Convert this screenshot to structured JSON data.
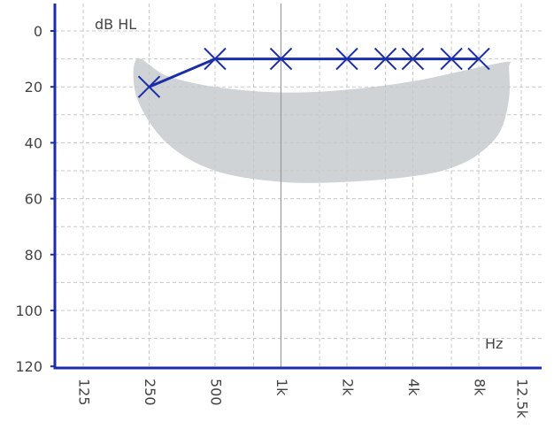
{
  "chart_data": {
    "type": "line",
    "ylabel": "dB HL",
    "xlabel": "Hz",
    "y_axis": {
      "ticks": [
        0,
        20,
        40,
        60,
        80,
        100,
        120
      ],
      "range": [
        -10,
        120
      ],
      "inverted": true,
      "minor_gridlines_every": 10
    },
    "x_axis": {
      "scale": "log2",
      "tick_labels": [
        "125",
        "250",
        "500",
        "1k",
        "2k",
        "4k",
        "8k",
        "12.5k"
      ],
      "tick_freqs_hz": [
        125,
        250,
        500,
        1000,
        2000,
        4000,
        8000,
        12500
      ],
      "label_rotation": "vertical",
      "intermediate_gridlines_hz": [
        750,
        1500,
        3000,
        6000
      ],
      "center_reference_line_hz": 1000
    },
    "grid": true,
    "series": [
      {
        "marker": "x",
        "color": "#1a2ea8",
        "points": [
          {
            "x": 250,
            "y": 20
          },
          {
            "x": 500,
            "y": 10
          },
          {
            "x": 1000,
            "y": 10
          },
          {
            "x": 2000,
            "y": 10
          },
          {
            "x": 3000,
            "y": 10
          },
          {
            "x": 4000,
            "y": 10
          },
          {
            "x": 6000,
            "y": 10
          },
          {
            "x": 8000,
            "y": 10
          }
        ]
      }
    ],
    "speech_banana": {
      "color": "#cfd3d6",
      "upper": [
        [
          220,
          10
        ],
        [
          300,
          16
        ],
        [
          500,
          20
        ],
        [
          1000,
          22
        ],
        [
          2000,
          21
        ],
        [
          4000,
          18
        ],
        [
          8000,
          13
        ],
        [
          11000,
          11
        ]
      ],
      "lower": [
        [
          11000,
          13
        ],
        [
          11000,
          24
        ],
        [
          10000,
          36
        ],
        [
          8000,
          44
        ],
        [
          6000,
          49
        ],
        [
          4000,
          52
        ],
        [
          2000,
          54
        ],
        [
          1000,
          54
        ],
        [
          500,
          50
        ],
        [
          300,
          40
        ],
        [
          220,
          24
        ]
      ]
    },
    "colors": {
      "axis": "#1a2ea8",
      "grid": "#c8c8c8",
      "series": "#1a2ea8",
      "center_line": "#9a9a9a"
    }
  }
}
